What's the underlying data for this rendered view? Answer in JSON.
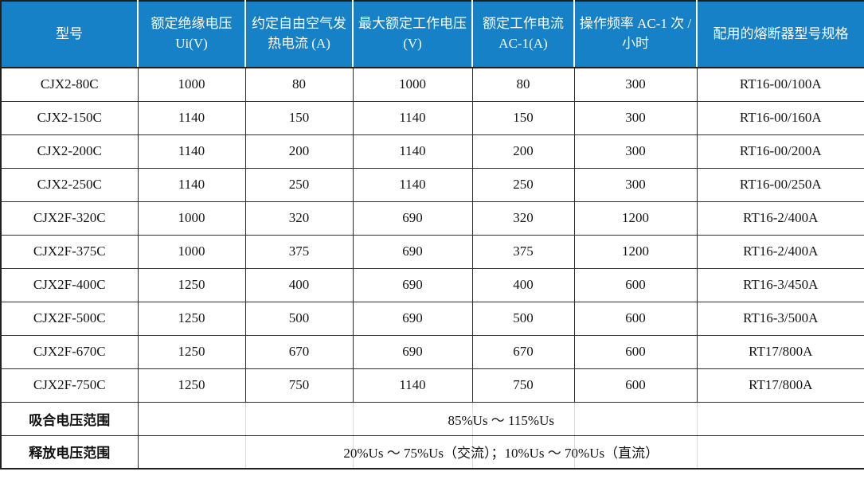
{
  "colors": {
    "header_bg": "#1681c6",
    "header_text": "#ffffff"
  },
  "table": {
    "columns": [
      {
        "label": "型号"
      },
      {
        "label": "额定绝缘电压 Ui(V)"
      },
      {
        "label": "约定自由空气发热电流 (A)"
      },
      {
        "label": "最大额定工作电压 (V)"
      },
      {
        "label": "额定工作电流 AC-1(A)"
      },
      {
        "label": "操作频率 AC-1 次 / 小时"
      },
      {
        "label": "配用的熔断器型号规格"
      }
    ],
    "rows": [
      [
        "CJX2-80C",
        "1000",
        "80",
        "1000",
        "80",
        "300",
        "RT16-00/100A"
      ],
      [
        "CJX2-150C",
        "1140",
        "150",
        "1140",
        "150",
        "300",
        "RT16-00/160A"
      ],
      [
        "CJX2-200C",
        "1140",
        "200",
        "1140",
        "200",
        "300",
        "RT16-00/200A"
      ],
      [
        "CJX2-250C",
        "1140",
        "250",
        "1140",
        "250",
        "300",
        "RT16-00/250A"
      ],
      [
        "CJX2F-320C",
        "1000",
        "320",
        "690",
        "320",
        "1200",
        "RT16-2/400A"
      ],
      [
        "CJX2F-375C",
        "1000",
        "375",
        "690",
        "375",
        "1200",
        "RT16-2/400A"
      ],
      [
        "CJX2F-400C",
        "1250",
        "400",
        "690",
        "400",
        "600",
        "RT16-3/450A"
      ],
      [
        "CJX2F-500C",
        "1250",
        "500",
        "690",
        "500",
        "600",
        "RT16-3/500A"
      ],
      [
        "CJX2F-670C",
        "1250",
        "670",
        "690",
        "670",
        "600",
        "RT17/800A"
      ],
      [
        "CJX2F-750C",
        "1250",
        "750",
        "1140",
        "750",
        "600",
        "RT17/800A"
      ]
    ],
    "footer_rows": [
      {
        "label": "吸合电压范围",
        "value": "85%Us ～ 115%Us"
      },
      {
        "label": "释放电压范围",
        "value": "20%Us ～ 75%Us（交流）；10%Us ～ 70%Us（直流）"
      }
    ]
  }
}
